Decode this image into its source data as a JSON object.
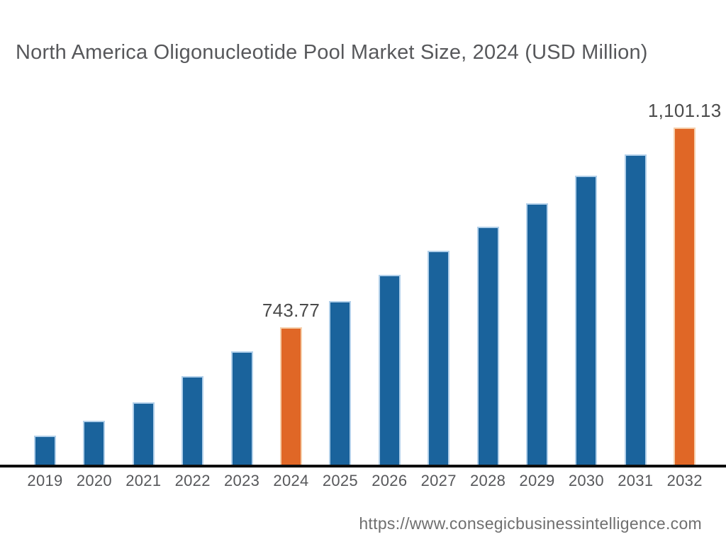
{
  "title": "North America Oligonucleotide Pool Market Size, 2024 (USD Million)",
  "footer": {
    "url": "https://www.consegicbusinessintelligence.com"
  },
  "chart_data": {
    "type": "bar",
    "title": "North America Oligonucleotide Pool Market Size, 2024 (USD Million)",
    "unit": "USD Million",
    "categories": [
      "2019",
      "2020",
      "2021",
      "2022",
      "2023",
      "2024",
      "2025",
      "2026",
      "2027",
      "2028",
      "2029",
      "2030",
      "2031",
      "2032"
    ],
    "values": [
      550,
      576,
      609,
      656,
      701,
      743.77,
      791,
      838,
      881,
      924,
      966,
      1015,
      1053,
      1101.13
    ],
    "data_labels": {
      "2024": "743.77",
      "2032": "1,101.13"
    },
    "highlight_years": [
      "2024",
      "2032"
    ],
    "xlabel": "",
    "ylabel": "",
    "ylim": [
      498,
      1101.13
    ],
    "grid": false,
    "legend": false,
    "colors": {
      "bar": "#1a639c",
      "bar_edge": "#b2d0ea",
      "highlight": "#e06726",
      "highlight_edge": "#f6d0ac",
      "axis": "#0d0d0d",
      "title_text": "#57585b",
      "tick_text": "#57585b",
      "data_label_text": "#4b4b4b",
      "footer_text": "#6f6f6f"
    }
  }
}
